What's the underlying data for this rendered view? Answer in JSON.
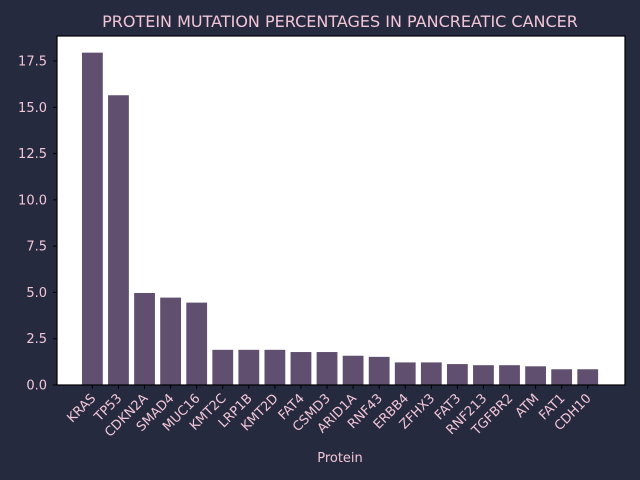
{
  "chart_data": {
    "type": "bar",
    "title": "PROTEIN MUTATION PERCENTAGES IN PANCREATIC CANCER",
    "xlabel": "Protein",
    "ylabel": "",
    "categories": [
      "KRAS",
      "TP53",
      "CDKN2A",
      "SMAD4",
      "MUC16",
      "KMT2C",
      "LRP1B",
      "KMT2D",
      "FAT4",
      "CSMD3",
      "ARID1A",
      "RNF43",
      "ERBB4",
      "ZFHX3",
      "FAT3",
      "RNF213",
      "TGFBR2",
      "ATM",
      "FAT1",
      "CDH10"
    ],
    "values": [
      17.95,
      15.65,
      4.97,
      4.72,
      4.45,
      1.9,
      1.9,
      1.9,
      1.78,
      1.78,
      1.58,
      1.52,
      1.22,
      1.22,
      1.13,
      1.07,
      1.07,
      1.01,
      0.85,
      0.85
    ],
    "ylim": [
      0,
      18.85
    ],
    "yticks": [
      0.0,
      2.5,
      5.0,
      7.5,
      10.0,
      12.5,
      15.0,
      17.5
    ],
    "ytick_labels": [
      "0.0",
      "2.5",
      "5.0",
      "7.5",
      "10.0",
      "12.5",
      "15.0",
      "17.5"
    ],
    "grid": false,
    "legend": "none",
    "colors": {
      "background": "#262a3f",
      "plot_background": "#ffffff",
      "bar": "#614f6f",
      "text": "#f2c6d6",
      "axis": "#000000"
    }
  }
}
